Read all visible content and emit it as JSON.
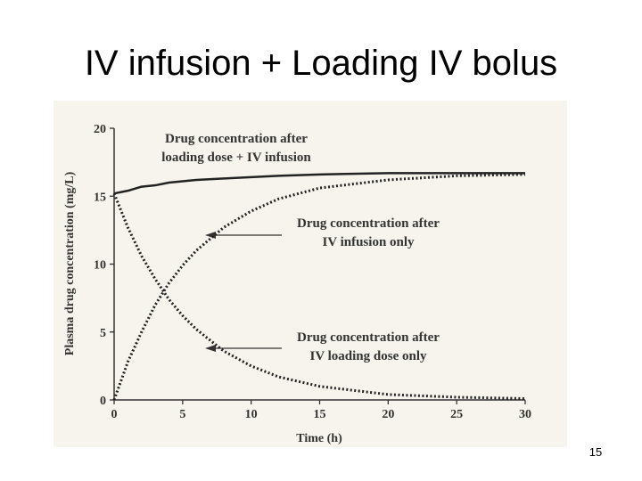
{
  "slide": {
    "title": "IV infusion + Loading IV bolus",
    "page_number": "15"
  },
  "chart_data": {
    "type": "line",
    "xlabel": "Time (h)",
    "ylabel": "Plasma drug concentration (mg/L)",
    "x": [
      0,
      1,
      2,
      3,
      4,
      5,
      6,
      8,
      10,
      12,
      15,
      20,
      25,
      30
    ],
    "series": [
      {
        "color": "#222222",
        "style": "solid",
        "values": [
          15.2,
          15.4,
          15.7,
          15.8,
          16.0,
          16.1,
          16.2,
          16.3,
          16.4,
          16.5,
          16.6,
          16.7,
          16.7,
          16.7
        ]
      },
      {
        "color": "#222222",
        "style": "dotted",
        "values": [
          0,
          2.8,
          5.0,
          7.0,
          8.6,
          9.9,
          11.0,
          12.7,
          13.9,
          14.8,
          15.6,
          16.2,
          16.5,
          16.6
        ]
      },
      {
        "color": "#222222",
        "style": "dotted",
        "values": [
          15.2,
          12.7,
          10.6,
          8.9,
          7.4,
          6.2,
          5.2,
          3.6,
          2.5,
          1.7,
          1.0,
          0.4,
          0.2,
          0.1
        ]
      }
    ],
    "annotations": [
      [
        "Drug concentration after",
        "loading dose + IV infusion"
      ],
      [
        "Drug concentration after",
        "IV infusion only"
      ],
      [
        "Drug concentration after",
        "IV loading dose only"
      ]
    ],
    "xlim": [
      0,
      30
    ],
    "xticks": [
      0,
      5,
      10,
      15,
      20,
      25,
      30
    ],
    "ylim": [
      0,
      20
    ],
    "yticks": [
      0,
      5,
      10,
      15,
      20
    ]
  }
}
